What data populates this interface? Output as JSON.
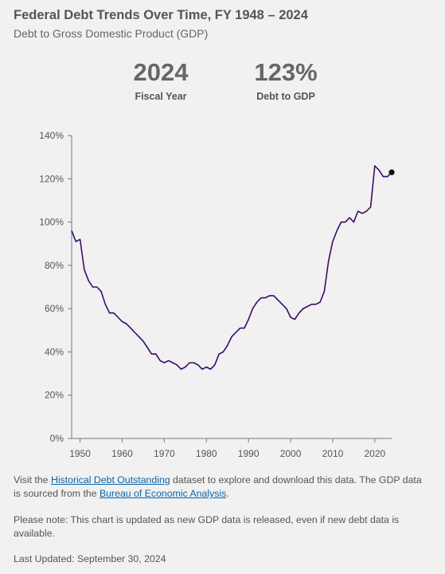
{
  "header": {
    "title": "Federal Debt Trends Over Time, FY 1948 – 2024",
    "subtitle": "Debt to Gross Domestic Product (GDP)"
  },
  "stats": {
    "year_value": "2024",
    "year_label": "Fiscal Year",
    "debt_value": "123%",
    "debt_label": "Debt to GDP"
  },
  "chart_data": {
    "type": "line",
    "x": [
      1948,
      1949,
      1950,
      1951,
      1952,
      1953,
      1954,
      1955,
      1956,
      1957,
      1958,
      1959,
      1960,
      1961,
      1962,
      1963,
      1964,
      1965,
      1966,
      1967,
      1968,
      1969,
      1970,
      1971,
      1972,
      1973,
      1974,
      1975,
      1976,
      1977,
      1978,
      1979,
      1980,
      1981,
      1982,
      1983,
      1984,
      1985,
      1986,
      1987,
      1988,
      1989,
      1990,
      1991,
      1992,
      1993,
      1994,
      1995,
      1996,
      1997,
      1998,
      1999,
      2000,
      2001,
      2002,
      2003,
      2004,
      2005,
      2006,
      2007,
      2008,
      2009,
      2010,
      2011,
      2012,
      2013,
      2014,
      2015,
      2016,
      2017,
      2018,
      2019,
      2020,
      2021,
      2022,
      2023,
      2024
    ],
    "series": [
      {
        "values": [
          96,
          91,
          92,
          78,
          73,
          70,
          70,
          68,
          62,
          58,
          58,
          56,
          54,
          53,
          51,
          49,
          47,
          45,
          42,
          39,
          39,
          36,
          35,
          36,
          35,
          34,
          32,
          33,
          35,
          35,
          34,
          32,
          33,
          32,
          34,
          39,
          40,
          43,
          47,
          49,
          51,
          51,
          55,
          60,
          63,
          65,
          65,
          66,
          66,
          64,
          62,
          60,
          56,
          55,
          58,
          60,
          61,
          62,
          62,
          63,
          68,
          82,
          91,
          96,
          100,
          100,
          102,
          100,
          105,
          104,
          105,
          107,
          126,
          124,
          121,
          121,
          123
        ]
      }
    ],
    "xticks": [
      1950,
      1960,
      1970,
      1980,
      1990,
      2000,
      2010,
      2020
    ],
    "xtick_labels": [
      "1950",
      "1960",
      "1970",
      "1980",
      "1990",
      "2000",
      "2010",
      "2020"
    ],
    "yticks": [
      0,
      20,
      40,
      60,
      80,
      100,
      120,
      140
    ],
    "ytick_labels": [
      "0%",
      "20%",
      "40%",
      "60%",
      "80%",
      "100%",
      "120%",
      "140%"
    ],
    "xlim": [
      1948,
      2024
    ],
    "ylim": [
      0,
      140
    ],
    "grid": false,
    "highlight_point": {
      "x": 2024,
      "y": 123
    },
    "line_color": "#3b0a6b"
  },
  "footer": {
    "p1_a": "Visit the ",
    "p1_link1": "Historical Debt Outstanding",
    "p1_b": " dataset to explore and download this data. The GDP data is sourced from the ",
    "p1_link2": "Bureau of Economic Analysis",
    "p1_c": ".",
    "p2": "Please note: This chart is updated as new GDP data is released, even if new debt data is available.",
    "p3": "Last Updated: September 30, 2024"
  }
}
